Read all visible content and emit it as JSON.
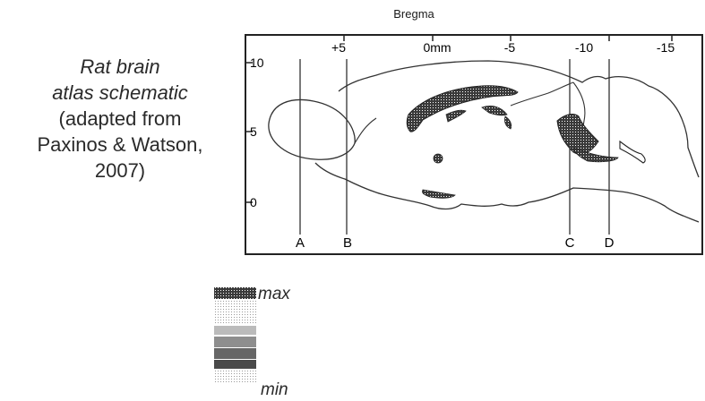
{
  "caption": {
    "line1": "Rat brain",
    "line2": "atlas schematic",
    "line3": "(adapted from",
    "line4": "Paxinos & Watson,",
    "line5": "2007)"
  },
  "axis": {
    "title": "Bregma",
    "top_ticks": [
      "+5",
      "0mm",
      "-5",
      "-10",
      "-15"
    ],
    "left_ticks": [
      "10",
      "5",
      "0"
    ]
  },
  "sections": [
    "A",
    "B",
    "C",
    "D"
  ],
  "intensity_scale": {
    "max_label": "max",
    "min_label": "min",
    "levels": [
      {
        "shade": "#5a5a5a"
      },
      {
        "shade": "#e2e2e2"
      },
      {
        "shade": "#9a9a9a"
      },
      {
        "shade": "#6e6e6e"
      },
      {
        "shade": "#4a4a4a"
      },
      {
        "shade": "#e6e6e6"
      }
    ]
  },
  "colors": {
    "ink": "#1a1a1a",
    "frame": "#222222"
  }
}
